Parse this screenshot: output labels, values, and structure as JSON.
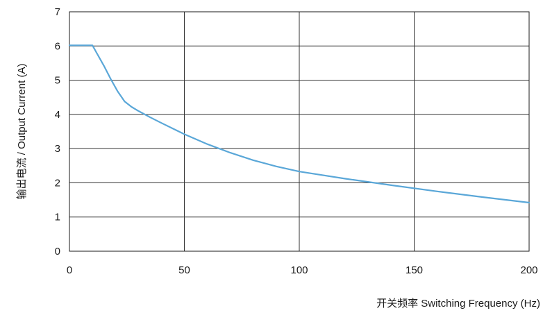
{
  "chart_data": {
    "type": "line",
    "title": "",
    "xlabel": "开关频率 Switching Frequency (Hz)",
    "ylabel": "输出电流 / Output Current (A)",
    "xlim": [
      0,
      200
    ],
    "ylim": [
      0,
      7
    ],
    "x_ticks": [
      0,
      50,
      100,
      150,
      200
    ],
    "y_ticks": [
      0,
      1,
      2,
      3,
      4,
      5,
      6,
      7
    ],
    "x_tick_labels": [
      "0",
      "50",
      "100",
      "150",
      "200"
    ],
    "y_tick_labels": [
      "0",
      "1",
      "2",
      "3",
      "4",
      "5",
      "6",
      "7"
    ],
    "grid": true,
    "line_color": "#5aa7d8",
    "grid_color": "#333333",
    "series": [
      {
        "x": [
          0,
          10,
          12,
          15,
          18,
          21,
          24,
          27,
          30,
          35,
          40,
          50,
          60,
          70,
          80,
          90,
          100,
          120,
          140,
          160,
          180,
          200
        ],
        "y": [
          6.02,
          6.02,
          5.78,
          5.42,
          5.03,
          4.67,
          4.38,
          4.22,
          4.1,
          3.92,
          3.75,
          3.42,
          3.13,
          2.88,
          2.66,
          2.48,
          2.33,
          2.12,
          1.93,
          1.75,
          1.58,
          1.42
        ]
      }
    ]
  }
}
